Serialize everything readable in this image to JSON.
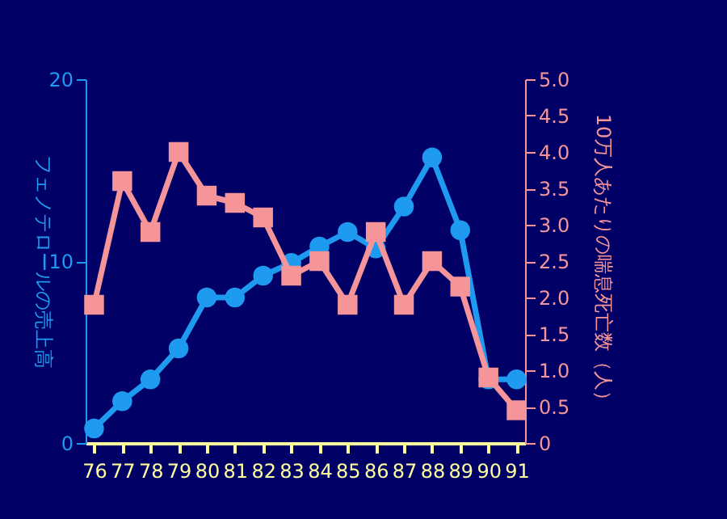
{
  "chart_data": {
    "type": "line",
    "ylabel": "フェノテロールの売上高",
    "y2label": "10万人あたりの喘息死亡数（人）",
    "categories": [
      "76",
      "77",
      "78",
      "79",
      "80",
      "81",
      "82",
      "83",
      "84",
      "85",
      "86",
      "87",
      "88",
      "89",
      "90",
      "91"
    ],
    "series": [
      {
        "color": "#1e9bf0",
        "marker": "circle",
        "values": [
          0.8,
          2.3,
          3.5,
          5.2,
          8.0,
          8.0,
          9.2,
          9.9,
          10.8,
          11.6,
          10.7,
          13.0,
          15.7,
          11.7,
          3.5,
          3.5
        ]
      },
      {
        "color": "#f5959a",
        "marker": "square",
        "axis": "y2",
        "values": [
          1.9,
          3.6,
          2.9,
          4.0,
          3.4,
          3.3,
          3.1,
          2.3,
          2.5,
          1.9,
          2.9,
          1.9,
          2.5,
          2.15,
          0.9,
          0.45
        ]
      }
    ],
    "ylim": [
      0,
      20
    ],
    "yticks": [
      0,
      10,
      20
    ],
    "y2lim": [
      0,
      5
    ],
    "y2ticks": [
      0,
      {
        "value": 0.5,
        "label": "0.5"
      },
      {
        "value": 1,
        "label": "1.0"
      },
      {
        "value": 1.5,
        "label": "1.5"
      },
      {
        "value": 2,
        "label": "2.0"
      },
      {
        "value": 2.5,
        "label": "2.5"
      },
      {
        "value": 3,
        "label": "3.0"
      },
      {
        "value": 3.5,
        "label": "3.5"
      },
      {
        "value": 4,
        "label": "4.0"
      },
      {
        "value": 4.5,
        "label": "4.5"
      },
      {
        "value": 5,
        "label": "5.0"
      }
    ],
    "grid": false
  }
}
